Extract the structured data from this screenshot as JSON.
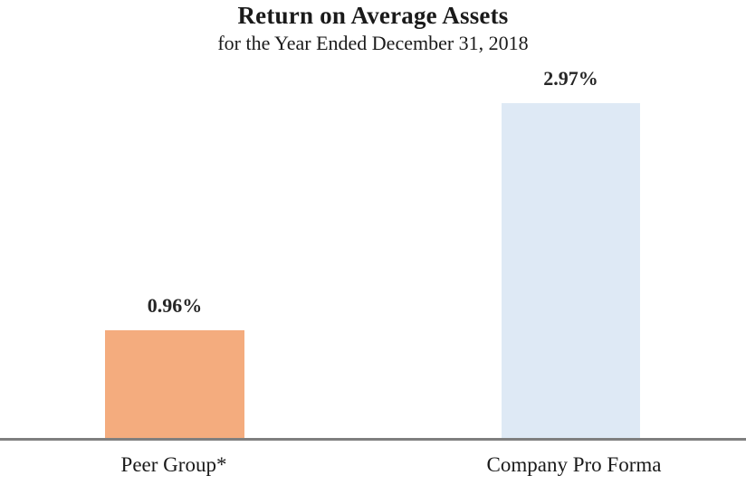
{
  "chart_data": {
    "type": "bar",
    "title": "Return on Average Assets",
    "subtitle": "for the Year Ended December 31, 2018",
    "categories": [
      "Peer Group*",
      "Company Pro Forma"
    ],
    "values": [
      0.96,
      2.97
    ],
    "value_labels": [
      "0.96%",
      "2.97%"
    ],
    "ylim": [
      0,
      3.4
    ],
    "grid": false,
    "legend": "none",
    "y_axis_visible": false,
    "bar_colors": [
      "#F4AC7E",
      "#DEE9F5"
    ],
    "axis_line_color": "#7F7F7F",
    "text_color": "#1A1A1A"
  }
}
